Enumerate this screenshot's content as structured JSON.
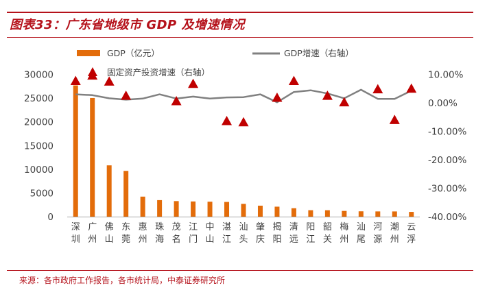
{
  "header": {
    "title": "图表33：广东省地级市 GDP 及增速情况",
    "source": "来源：各市政府工作报告，各市统计局，中泰证券研究所"
  },
  "colors": {
    "bar": "#E36C0A",
    "line": "#808080",
    "marker": "#C00000",
    "accent": "#B5121B"
  },
  "chart_data": {
    "type": "bar",
    "categories": [
      "深圳",
      "广州",
      "佛山",
      "东莞",
      "惠州",
      "珠海",
      "茂名",
      "江门",
      "中山",
      "湛江",
      "汕头",
      "肇庆",
      "揭阳",
      "清远",
      "阳江",
      "韶关",
      "梅州",
      "汕尾",
      "河源",
      "潮州",
      "云浮"
    ],
    "category_labels": [
      [
        "深",
        "圳"
      ],
      [
        "广",
        "州"
      ],
      [
        "佛",
        "山"
      ],
      [
        "东",
        "莞"
      ],
      [
        "惠",
        "州"
      ],
      [
        "珠",
        "海"
      ],
      [
        "茂",
        "名"
      ],
      [
        "江",
        "门"
      ],
      [
        "中",
        "山"
      ],
      [
        "湛",
        "江"
      ],
      [
        "汕",
        "头"
      ],
      [
        "肇",
        "庆"
      ],
      [
        "揭",
        "阳"
      ],
      [
        "清",
        "远"
      ],
      [
        "阳",
        "江"
      ],
      [
        "韶",
        "关"
      ],
      [
        "梅",
        "州"
      ],
      [
        "汕",
        "尾"
      ],
      [
        "河",
        "源"
      ],
      [
        "潮",
        "州"
      ],
      [
        "云",
        "浮"
      ]
    ],
    "series": [
      {
        "name": "GDP（亿元）",
        "type": "bar",
        "axis": "left",
        "values": [
          27670,
          25019,
          10816,
          9650,
          4222,
          3482,
          3279,
          3201,
          3152,
          3100,
          2694,
          2312,
          2102,
          1778,
          1360,
          1353,
          1207,
          1123,
          1102,
          1097,
          1002
        ]
      },
      {
        "name": "GDP增速（右轴）",
        "type": "line",
        "axis": "right",
        "values": [
          3.0,
          2.7,
          1.6,
          1.1,
          1.5,
          3.0,
          1.5,
          2.2,
          1.5,
          1.9,
          2.0,
          3.0,
          0.2,
          3.8,
          4.4,
          3.3,
          1.6,
          4.6,
          1.4,
          1.4,
          4.3
        ]
      },
      {
        "name": "固定资产投资增速（右轴）",
        "type": "scatter",
        "axis": "right",
        "values": [
          7.7,
          9.6,
          7.5,
          2.5,
          null,
          null,
          0.6,
          6.7,
          null,
          -6.4,
          -6.8,
          null,
          1.8,
          7.7,
          null,
          2.5,
          0.2,
          null,
          4.8,
          -6.0,
          5.0
        ]
      }
    ],
    "yaxis_left": {
      "min": 0,
      "max": 30000,
      "ticks": [
        0,
        5000,
        10000,
        15000,
        20000,
        25000,
        30000
      ]
    },
    "yaxis_right": {
      "min": -40,
      "max": 10,
      "ticks": [
        -40,
        -30,
        -20,
        -10,
        0,
        10
      ],
      "tick_labels": [
        "-40.00%",
        "-30.00%",
        "-20.00%",
        "-10.00%",
        "0.00%",
        "10.00%"
      ]
    },
    "legend_position": "top"
  }
}
